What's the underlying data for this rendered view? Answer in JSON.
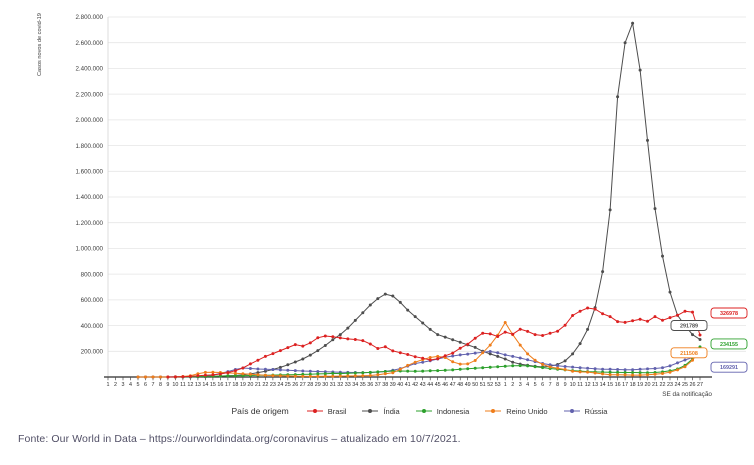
{
  "chart_data": {
    "type": "line",
    "y_axis_title": "Casos novos de covid-19",
    "x_axis_title": "SE da notificação",
    "legend_title": "País de origem",
    "legend_position": "bottom",
    "grid": "horizontal",
    "ylim": [
      0,
      2800000
    ],
    "y_ticks": [
      {
        "value": 200000,
        "label": "200.000"
      },
      {
        "value": 400000,
        "label": "400.000"
      },
      {
        "value": 600000,
        "label": "600.000"
      },
      {
        "value": 800000,
        "label": "800.000"
      },
      {
        "value": 1000000,
        "label": "1.000.000"
      },
      {
        "value": 1200000,
        "label": "1.200.000"
      },
      {
        "value": 1400000,
        "label": "1.400.000"
      },
      {
        "value": 1600000,
        "label": "1.600.000"
      },
      {
        "value": 1800000,
        "label": "1.800.000"
      },
      {
        "value": 2000000,
        "label": "2.000.000"
      },
      {
        "value": 2200000,
        "label": "2.200.000"
      },
      {
        "value": 2400000,
        "label": "2.400.000"
      },
      {
        "value": 2600000,
        "label": "2.600.000"
      },
      {
        "value": 2800000,
        "label": "2.800.000"
      }
    ],
    "x_labels": [
      "1",
      "2",
      "3",
      "4",
      "5",
      "6",
      "7",
      "8",
      "9",
      "10",
      "11",
      "12",
      "13",
      "14",
      "15",
      "16",
      "17",
      "18",
      "19",
      "20",
      "21",
      "22",
      "23",
      "24",
      "25",
      "26",
      "27",
      "28",
      "29",
      "30",
      "31",
      "32",
      "33",
      "34",
      "35",
      "36",
      "37",
      "38",
      "39",
      "40",
      "41",
      "42",
      "43",
      "44",
      "45",
      "46",
      "47",
      "48",
      "49",
      "50",
      "51",
      "52",
      "53",
      "1",
      "2",
      "3",
      "4",
      "5",
      "6",
      "7",
      "8",
      "9",
      "10",
      "11",
      "12",
      "13",
      "14",
      "15",
      "16",
      "17",
      "18",
      "19",
      "20",
      "21",
      "22",
      "23",
      "24",
      "25",
      "26",
      "27"
    ],
    "series": [
      {
        "id": "brasil",
        "name": "Brasil",
        "color": "#dc2020",
        "end_label": "326978",
        "values": [
          null,
          null,
          null,
          null,
          null,
          null,
          null,
          null,
          200,
          800,
          2000,
          4500,
          9000,
          13500,
          16000,
          23000,
          34000,
          49000,
          70000,
          102000,
          131000,
          160000,
          182000,
          205000,
          229000,
          252000,
          240000,
          265000,
          305000,
          319000,
          313000,
          304000,
          296000,
          292000,
          283000,
          257000,
          222000,
          235000,
          203000,
          189000,
          175000,
          158000,
          146000,
          132000,
          142000,
          165000,
          186000,
          224000,
          255000,
          302000,
          341000,
          335000,
          315000,
          349000,
          333000,
          372000,
          355000,
          330000,
          323000,
          340000,
          356000,
          403000,
          478000,
          512000,
          537000,
          528000,
          492000,
          470000,
          431000,
          425000,
          437000,
          449000,
          433000,
          470000,
          441000,
          462000,
          480000,
          511000,
          505000,
          326978
        ]
      },
      {
        "id": "india",
        "name": "Índia",
        "color": "#4d4d4d",
        "end_label": "291789",
        "values": [
          null,
          null,
          null,
          null,
          0,
          0,
          100,
          200,
          300,
          500,
          700,
          1000,
          1500,
          2500,
          5000,
          7000,
          9000,
          12000,
          17000,
          24000,
          34000,
          45000,
          58000,
          75000,
          95000,
          117000,
          140000,
          170000,
          205000,
          245000,
          290000,
          330000,
          380000,
          440000,
          500000,
          560000,
          610000,
          645000,
          630000,
          580000,
          520000,
          470000,
          420000,
          370000,
          330000,
          310000,
          290000,
          270000,
          250000,
          230000,
          200000,
          180000,
          160000,
          140000,
          115000,
          100000,
          92000,
          84000,
          78000,
          83000,
          97000,
          125000,
          180000,
          260000,
          370000,
          540000,
          820000,
          1300000,
          2180000,
          2600000,
          2752000,
          2387000,
          1840000,
          1310000,
          940000,
          660000,
          480000,
          400000,
          330000,
          291789
        ]
      },
      {
        "id": "indonesia",
        "name": "Indonesia",
        "color": "#2ca02c",
        "end_label": "234155",
        "values": [
          null,
          null,
          null,
          null,
          null,
          null,
          null,
          null,
          null,
          300,
          800,
          1500,
          3000,
          5000,
          6500,
          7500,
          8500,
          9500,
          11000,
          12000,
          13000,
          14000,
          15000,
          16000,
          17000,
          18500,
          20000,
          22000,
          24000,
          26000,
          28000,
          26500,
          28500,
          31000,
          33000,
          36000,
          40000,
          43000,
          46000,
          47000,
          45500,
          44000,
          46000,
          48000,
          50000,
          52000,
          55000,
          60000,
          64000,
          68000,
          72000,
          76000,
          80000,
          84000,
          87000,
          89000,
          86000,
          80000,
          73000,
          66000,
          60000,
          55000,
          50000,
          46000,
          42000,
          40000,
          38000,
          37000,
          36000,
          35000,
          35000,
          34000,
          33000,
          35000,
          40000,
          48000,
          62000,
          90000,
          140000,
          234155
        ]
      },
      {
        "id": "reino-unido",
        "name": "Reino Unido",
        "color": "#ef7d1a",
        "end_label": "211508",
        "values": [
          null,
          null,
          null,
          null,
          0,
          0,
          100,
          200,
          300,
          1000,
          4000,
          10000,
          25000,
          36000,
          37000,
          35000,
          32000,
          29000,
          25000,
          22000,
          18000,
          14000,
          11000,
          9000,
          8000,
          7000,
          5500,
          5000,
          5000,
          5200,
          6000,
          7000,
          8000,
          8500,
          9000,
          12000,
          18000,
          25000,
          33000,
          60000,
          90000,
          115000,
          135000,
          152000,
          160000,
          152000,
          118000,
          100000,
          102000,
          128000,
          188000,
          248000,
          325000,
          424000,
          330000,
          248000,
          180000,
          130000,
          98000,
          78000,
          68000,
          58000,
          44000,
          40000,
          38000,
          31000,
          24000,
          18000,
          17000,
          16000,
          15000,
          15000,
          17000,
          21000,
          27000,
          37000,
          55000,
          80000,
          130000,
          211508
        ]
      },
      {
        "id": "russia",
        "name": "Rússia",
        "color": "#6161ad",
        "end_label": "169291",
        "values": [
          null,
          null,
          null,
          null,
          0,
          0,
          0,
          100,
          100,
          200,
          300,
          500,
          1200,
          6000,
          15000,
          28000,
          42000,
          58000,
          70000,
          66000,
          62000,
          60000,
          58000,
          55000,
          52000,
          50000,
          47000,
          45000,
          43000,
          41000,
          39000,
          37000,
          36000,
          35000,
          34000,
          35000,
          38000,
          43000,
          52000,
          65000,
          85000,
          105000,
          115000,
          126000,
          140000,
          153000,
          163000,
          172000,
          178000,
          186000,
          192000,
          198000,
          188000,
          172000,
          160000,
          148000,
          134000,
          120000,
          105000,
          95000,
          88000,
          82000,
          77000,
          72000,
          68000,
          64000,
          61000,
          60000,
          58000,
          57000,
          57000,
          60000,
          63000,
          66000,
          72000,
          86000,
          110000,
          132000,
          152000,
          169291
        ]
      }
    ]
  },
  "footer": {
    "text": "Fonte: Our World in Data – https://ourworldindata.org/coronavirus – atualizado em 10/7/2021."
  }
}
